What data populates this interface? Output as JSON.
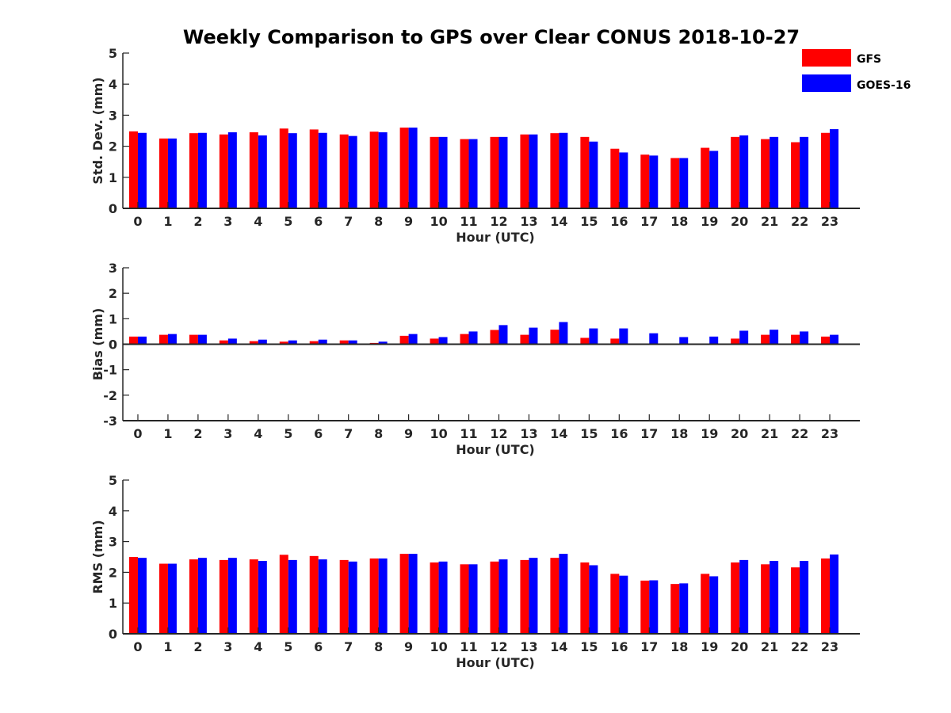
{
  "chart_data": {
    "type": "bar",
    "title": "Weekly Comparison to GPS over Clear CONUS 2018-10-27",
    "categories": [
      "0",
      "1",
      "2",
      "3",
      "4",
      "5",
      "6",
      "7",
      "8",
      "9",
      "10",
      "11",
      "12",
      "13",
      "14",
      "15",
      "16",
      "17",
      "18",
      "19",
      "20",
      "21",
      "22",
      "23"
    ],
    "legend": {
      "placement": "top-right",
      "entries": [
        {
          "name": "GFS",
          "color": "#ff0000"
        },
        {
          "name": "GOES-16",
          "color": "#0000ff"
        }
      ]
    },
    "panels": [
      {
        "id": "std",
        "ylabel": "Std. Dev. (mm)",
        "xlabel": "Hour (UTC)",
        "ylim": [
          0,
          5
        ],
        "yticks": [
          "0",
          "1",
          "2",
          "3",
          "4",
          "5"
        ],
        "series": [
          {
            "name": "GFS",
            "color": "#ff0000",
            "values": [
              2.48,
              2.25,
              2.42,
              2.38,
              2.45,
              2.57,
              2.54,
              2.38,
              2.47,
              2.6,
              2.3,
              2.23,
              2.3,
              2.38,
              2.42,
              2.3,
              1.92,
              1.73,
              1.62,
              1.95,
              2.3,
              2.23,
              2.13,
              2.43
            ]
          },
          {
            "name": "GOES-16",
            "color": "#0000ff",
            "values": [
              2.43,
              2.25,
              2.43,
              2.45,
              2.35,
              2.42,
              2.43,
              2.33,
              2.45,
              2.6,
              2.3,
              2.23,
              2.3,
              2.38,
              2.43,
              2.15,
              1.8,
              1.7,
              1.62,
              1.85,
              2.35,
              2.3,
              2.3,
              2.55
            ]
          }
        ]
      },
      {
        "id": "bias",
        "ylabel": "Bias (mm)",
        "xlabel": "Hour (UTC)",
        "ylim": [
          -3,
          3
        ],
        "yticks": [
          "-3",
          "-2",
          "-1",
          "0",
          "1",
          "2",
          "3"
        ],
        "series": [
          {
            "name": "GFS",
            "color": "#ff0000",
            "values": [
              0.3,
              0.37,
              0.37,
              0.15,
              0.12,
              0.1,
              0.12,
              0.15,
              0.05,
              0.33,
              0.22,
              0.4,
              0.56,
              0.37,
              0.57,
              0.25,
              0.22,
              0.0,
              0.0,
              0.0,
              0.22,
              0.37,
              0.37,
              0.3
            ]
          },
          {
            "name": "GOES-16",
            "color": "#0000ff",
            "values": [
              0.3,
              0.4,
              0.37,
              0.22,
              0.18,
              0.15,
              0.18,
              0.15,
              0.1,
              0.4,
              0.28,
              0.5,
              0.75,
              0.65,
              0.87,
              0.62,
              0.62,
              0.43,
              0.28,
              0.3,
              0.53,
              0.57,
              0.5,
              0.37
            ]
          }
        ]
      },
      {
        "id": "rms",
        "ylabel": "RMS (mm)",
        "xlabel": "Hour (UTC)",
        "ylim": [
          0,
          5
        ],
        "yticks": [
          "0",
          "1",
          "2",
          "3",
          "4",
          "5"
        ],
        "series": [
          {
            "name": "GFS",
            "color": "#ff0000",
            "values": [
              2.5,
              2.28,
              2.42,
              2.4,
              2.42,
              2.57,
              2.53,
              2.4,
              2.45,
              2.6,
              2.32,
              2.26,
              2.35,
              2.4,
              2.47,
              2.32,
              1.95,
              1.73,
              1.62,
              1.95,
              2.32,
              2.26,
              2.16,
              2.45
            ]
          },
          {
            "name": "GOES-16",
            "color": "#0000ff",
            "values": [
              2.47,
              2.28,
              2.47,
              2.47,
              2.37,
              2.4,
              2.42,
              2.35,
              2.45,
              2.6,
              2.35,
              2.26,
              2.42,
              2.47,
              2.6,
              2.23,
              1.89,
              1.74,
              1.64,
              1.87,
              2.4,
              2.37,
              2.37,
              2.58
            ]
          }
        ]
      }
    ]
  }
}
